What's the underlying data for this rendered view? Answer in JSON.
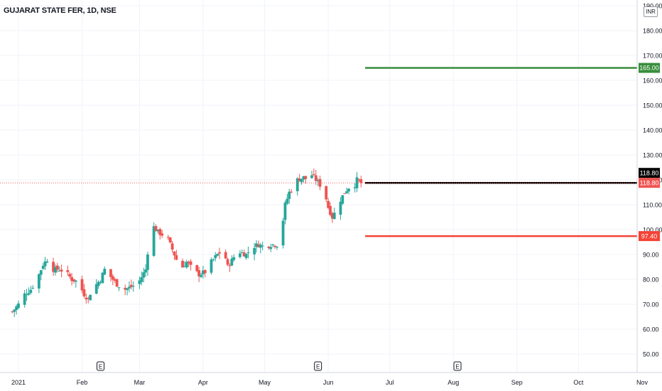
{
  "header": {
    "symbol_title": "GUJARAT STATE FER, 1D, NSE",
    "currency": "INR"
  },
  "colors": {
    "up": "#26a69a",
    "down": "#ef5350",
    "target": "#388e3c",
    "stop": "#f44336",
    "entry": "#000000",
    "grid": "#f0f3fa"
  },
  "chart_data": {
    "type": "candlestick",
    "title": "GUJARAT STATE FER, 1D, NSE",
    "ylabel": "INR",
    "ylim": [
      45,
      190
    ],
    "yticks": [
      50,
      60,
      70,
      80,
      90,
      100,
      110,
      120,
      130,
      140,
      150,
      160,
      170,
      180,
      190
    ],
    "ytick_labels": [
      "50.00",
      "60.00",
      "70.00",
      "80.00",
      "90.00",
      "100.00",
      "110.00",
      "120.00",
      "130.00",
      "140.00",
      "150.00",
      "160.00",
      "170.00",
      "180.00",
      "190.00"
    ],
    "xticks": [
      {
        "label": "2021",
        "day": 0
      },
      {
        "label": "Feb",
        "day": 31
      },
      {
        "label": "Mar",
        "day": 59
      },
      {
        "label": "Apr",
        "day": 90
      },
      {
        "label": "May",
        "day": 120
      },
      {
        "label": "Jun",
        "day": 151
      },
      {
        "label": "Jul",
        "day": 181
      },
      {
        "label": "Aug",
        "day": 212
      },
      {
        "label": "Sep",
        "day": 243
      },
      {
        "label": "Oct",
        "day": 273
      },
      {
        "label": "Nov",
        "day": 304
      }
    ],
    "earnings_markers_day": [
      40,
      146,
      214
    ],
    "earnings_label": "E",
    "levels": [
      {
        "name": "target",
        "value": 165.0,
        "label": "165.00",
        "from_day": 169
      },
      {
        "name": "entry",
        "value": 118.8,
        "label": "118.80",
        "from_day": 169
      },
      {
        "name": "stop",
        "value": 97.4,
        "label": "97.40",
        "from_day": 169
      }
    ],
    "last_price": {
      "value": 118.8,
      "label": "118.80"
    },
    "close_anchors": [
      [
        -3,
        67
      ],
      [
        0,
        70
      ],
      [
        3,
        74
      ],
      [
        6,
        76
      ],
      [
        9,
        80
      ],
      [
        12,
        86
      ],
      [
        14,
        88
      ],
      [
        17,
        84
      ],
      [
        20,
        84
      ],
      [
        23,
        83
      ],
      [
        26,
        80
      ],
      [
        29,
        79
      ],
      [
        32,
        74
      ],
      [
        34,
        72
      ],
      [
        36,
        77
      ],
      [
        38,
        78
      ],
      [
        40,
        80
      ],
      [
        42,
        84
      ],
      [
        44,
        82
      ],
      [
        46,
        80
      ],
      [
        48,
        78
      ],
      [
        50,
        77
      ],
      [
        52,
        76
      ],
      [
        55,
        77
      ],
      [
        58,
        78
      ],
      [
        62,
        84
      ],
      [
        64,
        98
      ],
      [
        66,
        101
      ],
      [
        68,
        99
      ],
      [
        70,
        98
      ],
      [
        73,
        96
      ],
      [
        76,
        90
      ],
      [
        79,
        84
      ],
      [
        82,
        87
      ],
      [
        85,
        84
      ],
      [
        88,
        82
      ],
      [
        91,
        83
      ],
      [
        94,
        87
      ],
      [
        97,
        90
      ],
      [
        100,
        92
      ],
      [
        102,
        85
      ],
      [
        105,
        89
      ],
      [
        108,
        91
      ],
      [
        111,
        90
      ],
      [
        114,
        93
      ],
      [
        117,
        94
      ],
      [
        120,
        93
      ],
      [
        123,
        94
      ],
      [
        126,
        94
      ],
      [
        128,
        98
      ],
      [
        130,
        110
      ],
      [
        132,
        115
      ],
      [
        134,
        117
      ],
      [
        136,
        120
      ],
      [
        139,
        121
      ],
      [
        141,
        120
      ],
      [
        143,
        122
      ],
      [
        146,
        119
      ],
      [
        149,
        116
      ],
      [
        151,
        109
      ],
      [
        153,
        105
      ],
      [
        155,
        108
      ],
      [
        157,
        112
      ],
      [
        159,
        115
      ],
      [
        161,
        117
      ],
      [
        163,
        116
      ],
      [
        165,
        120
      ],
      [
        167,
        118.8
      ]
    ]
  }
}
